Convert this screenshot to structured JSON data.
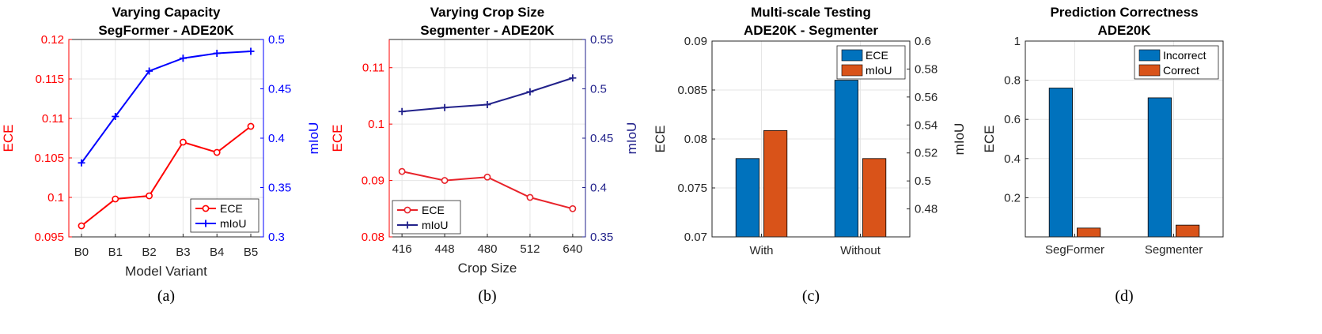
{
  "chart_data": [
    {
      "type": "line",
      "title": [
        "Varying Capacity",
        "SegFormer - ADE20K"
      ],
      "xlabel": "Model Variant",
      "ylabel_left": "ECE",
      "ylabel_right": "mIoU",
      "caption": "(a)",
      "categories": [
        "B0",
        "B1",
        "B2",
        "B3",
        "B4",
        "B5"
      ],
      "ylim_left": [
        0.095,
        0.12
      ],
      "yticks_left": [
        "0.095",
        "0.1",
        "0.105",
        "0.11",
        "0.115",
        "0.12"
      ],
      "ylim_right": [
        0.3,
        0.5
      ],
      "yticks_right": [
        "0.3",
        "0.35",
        "0.4",
        "0.45",
        "0.5"
      ],
      "grid": true,
      "legend_position": "bottom-right",
      "colors": {
        "left_axis": "#ff0000",
        "right_axis": "#0000ff"
      },
      "series": [
        {
          "name": "ECE",
          "axis": "left",
          "color": "#ff0000",
          "marker": "circle",
          "values": [
            0.0964,
            0.0998,
            0.1002,
            0.107,
            0.1057,
            0.109
          ]
        },
        {
          "name": "mIoU",
          "axis": "right",
          "color": "#0000ff",
          "marker": "plus",
          "values": [
            0.375,
            0.422,
            0.468,
            0.481,
            0.486,
            0.488
          ]
        }
      ]
    },
    {
      "type": "line",
      "title": [
        "Varying Crop Size",
        "Segmenter - ADE20K"
      ],
      "xlabel": "Crop Size",
      "ylabel_left": "ECE",
      "ylabel_right": "mIoU",
      "caption": "(b)",
      "categories": [
        "416",
        "448",
        "480",
        "512",
        "640"
      ],
      "ylim_left": [
        0.08,
        0.115
      ],
      "yticks_left": [
        "0.08",
        "0.09",
        "0.1",
        "0.11"
      ],
      "ylim_right": [
        0.35,
        0.55
      ],
      "yticks_right": [
        "0.35",
        "0.4",
        "0.45",
        "0.5",
        "0.55"
      ],
      "grid": true,
      "legend_position": "bottom-left",
      "colors": {
        "left_axis": "#ff0000",
        "right_axis": "#22228b"
      },
      "series": [
        {
          "name": "ECE",
          "axis": "left",
          "color": "#e8232a",
          "marker": "circle",
          "values": [
            0.0916,
            0.09,
            0.0906,
            0.087,
            0.085
          ]
        },
        {
          "name": "mIoU",
          "axis": "right",
          "color": "#22228b",
          "marker": "plus",
          "values": [
            0.477,
            0.481,
            0.484,
            0.497,
            0.511
          ]
        }
      ]
    },
    {
      "type": "bar",
      "title": [
        "Multi-scale Testing",
        "ADE20K - Segmenter"
      ],
      "xlabel": "",
      "ylabel_left": "ECE",
      "ylabel_right": "mIoU",
      "caption": "(c)",
      "categories": [
        "With",
        "Without"
      ],
      "ylim_left": [
        0.07,
        0.09
      ],
      "yticks_left": [
        "0.07",
        "0.075",
        "0.08",
        "0.085",
        "0.09"
      ],
      "ylim_right": [
        0.46,
        0.6
      ],
      "yticks_right": [
        "0.48",
        "0.5",
        "0.52",
        "0.54",
        "0.56",
        "0.58",
        "0.6"
      ],
      "grid": true,
      "legend_position": "top-right",
      "colors": {
        "bar1": "#0072bd",
        "bar2": "#d95319"
      },
      "series": [
        {
          "name": "ECE",
          "axis": "left",
          "color": "#0072bd",
          "values": [
            0.078,
            0.086
          ]
        },
        {
          "name": "mIoU",
          "axis": "right",
          "color": "#d95319",
          "values": [
            0.536,
            0.516
          ]
        }
      ]
    },
    {
      "type": "bar",
      "title": [
        "Prediction Correctness",
        "ADE20K"
      ],
      "xlabel": "",
      "ylabel_left": "ECE",
      "caption": "(d)",
      "categories": [
        "SegFormer",
        "Segmenter"
      ],
      "ylim_left": [
        0,
        1
      ],
      "yticks_left": [
        "0.2",
        "0.4",
        "0.6",
        "0.8",
        "1"
      ],
      "grid": true,
      "legend_position": "top-right",
      "colors": {
        "bar1": "#0072bd",
        "bar2": "#d95319"
      },
      "series": [
        {
          "name": "Incorrect",
          "color": "#0072bd",
          "values": [
            0.76,
            0.71
          ]
        },
        {
          "name": "Correct",
          "color": "#d95319",
          "values": [
            0.045,
            0.06
          ]
        }
      ]
    }
  ]
}
